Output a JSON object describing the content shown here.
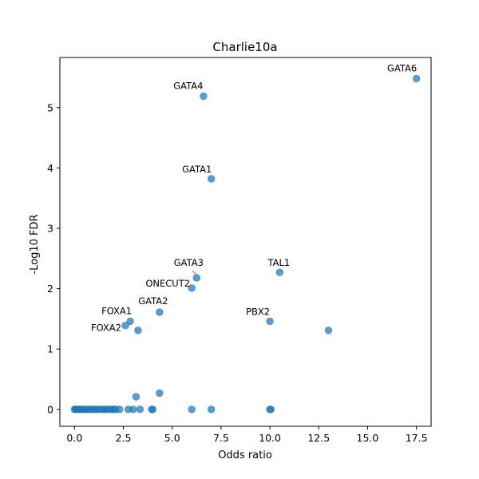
{
  "chart_data": {
    "type": "scatter",
    "title": "Charlie10a",
    "xlabel": "Odds ratio",
    "ylabel": "-Log10 FDR",
    "xlim": [
      -0.75,
      18.25
    ],
    "ylim": [
      -0.28,
      5.83
    ],
    "x_ticks": [
      0.0,
      2.5,
      5.0,
      7.5,
      10.0,
      12.5,
      15.0,
      17.5
    ],
    "x_tick_labels": [
      "0.0",
      "2.5",
      "5.0",
      "7.5",
      "10.0",
      "12.5",
      "15.0",
      "17.5"
    ],
    "y_ticks": [
      0,
      1,
      2,
      3,
      4,
      5
    ],
    "y_tick_labels": [
      "0",
      "1",
      "2",
      "3",
      "4",
      "5"
    ],
    "grid": false,
    "marker_color": "#1f77b4",
    "series": [
      {
        "points": [
          {
            "x": 17.5,
            "y": 5.48,
            "label": "GATA6"
          },
          {
            "x": 6.6,
            "y": 5.19,
            "label": "GATA4"
          },
          {
            "x": 7.0,
            "y": 3.82,
            "label": "GATA1"
          },
          {
            "x": 10.5,
            "y": 2.27,
            "label": "TAL1"
          },
          {
            "x": 6.25,
            "y": 2.18,
            "label": "GATA3"
          },
          {
            "x": 6.0,
            "y": 2.01,
            "label": "ONECUT2"
          },
          {
            "x": 4.35,
            "y": 1.61,
            "label": "GATA2"
          },
          {
            "x": 2.85,
            "y": 1.46,
            "label": "FOXA1"
          },
          {
            "x": 2.6,
            "y": 1.39,
            "label": "FOXA2"
          },
          {
            "x": 10.0,
            "y": 1.46,
            "label": "PBX2"
          },
          {
            "x": 13.0,
            "y": 1.31,
            "label": ""
          },
          {
            "x": 3.25,
            "y": 1.31,
            "label": ""
          },
          {
            "x": 4.35,
            "y": 0.27,
            "label": ""
          },
          {
            "x": 3.15,
            "y": 0.21,
            "label": ""
          },
          {
            "x": 0.0,
            "y": 0.0,
            "label": ""
          },
          {
            "x": 0.05,
            "y": 0.0,
            "label": ""
          },
          {
            "x": 0.1,
            "y": 0.0,
            "label": ""
          },
          {
            "x": 0.2,
            "y": 0.0,
            "label": ""
          },
          {
            "x": 0.3,
            "y": 0.0,
            "label": ""
          },
          {
            "x": 0.4,
            "y": 0.0,
            "label": ""
          },
          {
            "x": 0.5,
            "y": 0.0,
            "label": ""
          },
          {
            "x": 0.65,
            "y": 0.0,
            "label": ""
          },
          {
            "x": 0.75,
            "y": 0.0,
            "label": ""
          },
          {
            "x": 0.9,
            "y": 0.0,
            "label": ""
          },
          {
            "x": 1.0,
            "y": 0.0,
            "label": ""
          },
          {
            "x": 1.1,
            "y": 0.0,
            "label": ""
          },
          {
            "x": 1.25,
            "y": 0.0,
            "label": ""
          },
          {
            "x": 1.4,
            "y": 0.0,
            "label": ""
          },
          {
            "x": 1.5,
            "y": 0.0,
            "label": ""
          },
          {
            "x": 1.6,
            "y": 0.0,
            "label": ""
          },
          {
            "x": 1.75,
            "y": 0.0,
            "label": ""
          },
          {
            "x": 1.9,
            "y": 0.0,
            "label": ""
          },
          {
            "x": 2.0,
            "y": 0.0,
            "label": ""
          },
          {
            "x": 2.1,
            "y": 0.0,
            "label": ""
          },
          {
            "x": 2.3,
            "y": 0.0,
            "label": ""
          },
          {
            "x": 2.75,
            "y": 0.0,
            "label": ""
          },
          {
            "x": 3.0,
            "y": 0.0,
            "label": ""
          },
          {
            "x": 3.35,
            "y": 0.0,
            "label": ""
          },
          {
            "x": 3.95,
            "y": 0.0,
            "label": ""
          },
          {
            "x": 4.0,
            "y": 0.0,
            "label": ""
          },
          {
            "x": 6.0,
            "y": 0.0,
            "label": ""
          },
          {
            "x": 7.0,
            "y": 0.0,
            "label": ""
          },
          {
            "x": 10.0,
            "y": 0.0,
            "label": ""
          },
          {
            "x": 10.05,
            "y": 0.0,
            "label": ""
          }
        ]
      }
    ]
  }
}
